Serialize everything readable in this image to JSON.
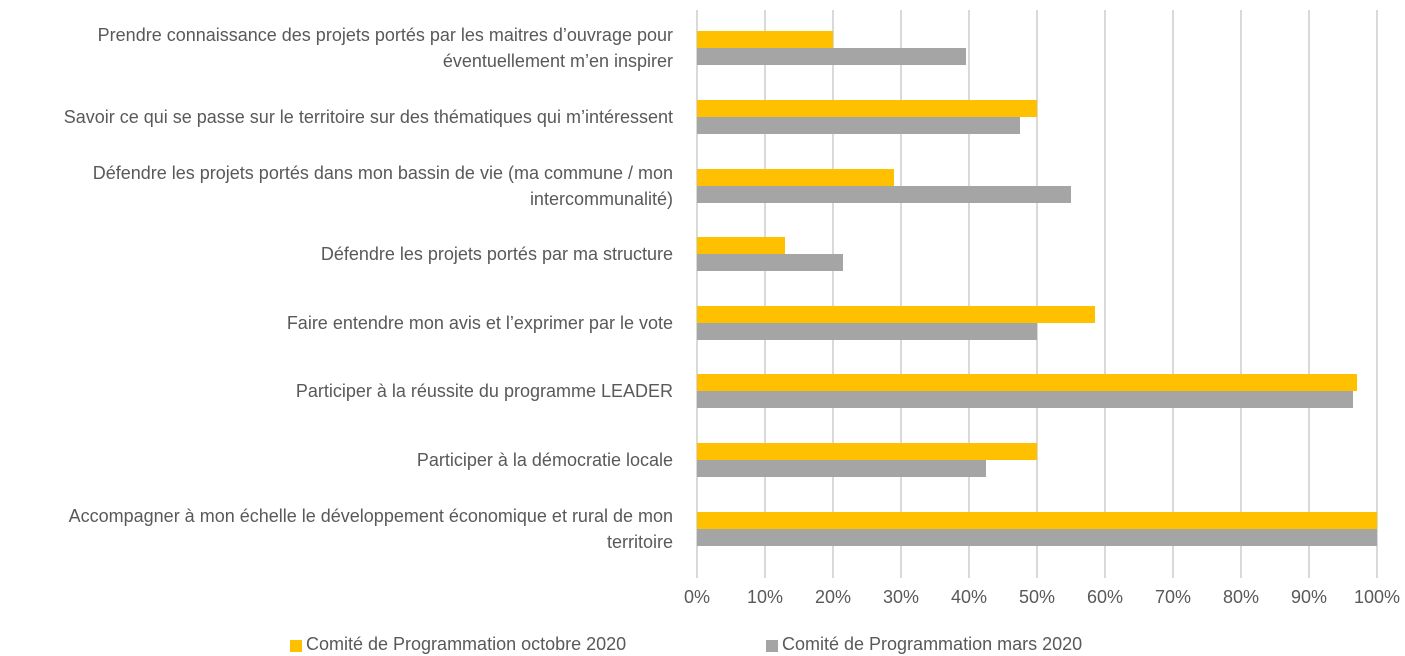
{
  "chart_data": {
    "type": "bar",
    "orientation": "horizontal",
    "categories": [
      "Prendre connaissance des projets portés par les maitres d’ouvrage pour éventuellement m’en inspirer",
      "Savoir ce qui se passe sur le territoire sur des thématiques qui m’intéressent",
      "Défendre les projets portés dans mon bassin de vie (ma commune / mon intercommunalité)",
      "Défendre les projets portés par ma structure",
      "Faire entendre mon avis et l’exprimer par le vote",
      "Participer à la réussite du programme LEADER",
      "Participer à la démocratie locale",
      "Accompagner à mon échelle le développement économique et rural de mon territoire"
    ],
    "series": [
      {
        "name": "Comité de Programmation octobre 2020",
        "color": "#ffc000",
        "values": [
          20,
          50,
          29,
          13,
          58.5,
          97,
          50,
          100
        ]
      },
      {
        "name": "Comité de Programmation mars 2020",
        "color": "#a5a5a5",
        "values": [
          39.5,
          47.5,
          55,
          21.5,
          50,
          96.5,
          42.5,
          100
        ]
      }
    ],
    "xlim": [
      0,
      100
    ],
    "xticks": [
      {
        "value": 0,
        "label": "0%"
      },
      {
        "value": 10,
        "label": "10%"
      },
      {
        "value": 20,
        "label": "20%"
      },
      {
        "value": 30,
        "label": "30%"
      },
      {
        "value": 40,
        "label": "40%"
      },
      {
        "value": 50,
        "label": "50%"
      },
      {
        "value": 60,
        "label": "60%"
      },
      {
        "value": 70,
        "label": "70%"
      },
      {
        "value": 80,
        "label": "80%"
      },
      {
        "value": 90,
        "label": "90%"
      },
      {
        "value": 100,
        "label": "100%"
      }
    ],
    "grid": true,
    "legend": "bottom"
  }
}
